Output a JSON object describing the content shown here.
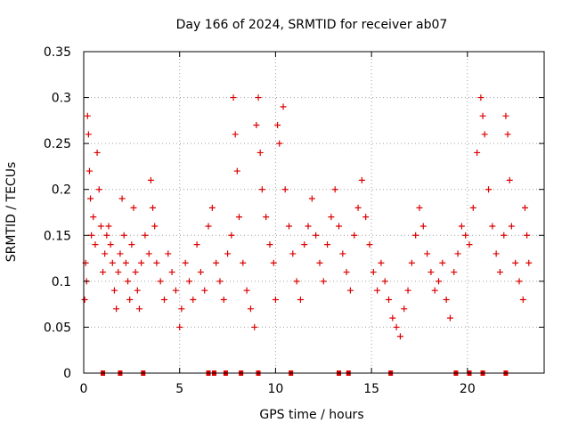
{
  "chart_data": {
    "type": "scatter",
    "title": "Day 166 of 2024, SRMTID for receiver ab07",
    "xlabel": "GPS time / hours",
    "ylabel": "SRMTID / TECUs",
    "xlim": [
      0,
      24
    ],
    "ylim": [
      0,
      0.35
    ],
    "x_ticks": [
      0,
      5,
      10,
      15,
      20
    ],
    "x_tick_labels": [
      "0",
      "5",
      "10",
      "15",
      "20"
    ],
    "y_ticks": [
      0,
      0.05,
      0.1,
      0.15,
      0.2,
      0.25,
      0.3,
      0.35
    ],
    "y_tick_labels": [
      "0",
      "0.05",
      "0.1",
      "0.15",
      "0.2",
      "0.25",
      "0.3",
      "0.35"
    ],
    "grid": true,
    "marker": "plus",
    "series_color": "#dd0000",
    "grid_color": "#a0a0a0",
    "series": [
      {
        "name": "SRMTID",
        "points": [
          [
            0.05,
            0.08
          ],
          [
            0.1,
            0.12
          ],
          [
            0.15,
            0.1
          ],
          [
            0.2,
            0.28
          ],
          [
            0.25,
            0.26
          ],
          [
            0.3,
            0.22
          ],
          [
            0.35,
            0.19
          ],
          [
            0.4,
            0.15
          ],
          [
            0.5,
            0.17
          ],
          [
            0.6,
            0.14
          ],
          [
            0.7,
            0.24
          ],
          [
            0.8,
            0.2
          ],
          [
            0.9,
            0.16
          ],
          [
            1.0,
            0.11
          ],
          [
            1.1,
            0.13
          ],
          [
            1.2,
            0.15
          ],
          [
            1.3,
            0.16
          ],
          [
            1.4,
            0.14
          ],
          [
            1.5,
            0.12
          ],
          [
            1.6,
            0.09
          ],
          [
            1.7,
            0.07
          ],
          [
            1.8,
            0.11
          ],
          [
            1.9,
            0.13
          ],
          [
            2.0,
            0.19
          ],
          [
            2.1,
            0.15
          ],
          [
            2.2,
            0.12
          ],
          [
            2.3,
            0.1
          ],
          [
            2.4,
            0.08
          ],
          [
            2.5,
            0.14
          ],
          [
            2.6,
            0.18
          ],
          [
            2.7,
            0.11
          ],
          [
            2.8,
            0.09
          ],
          [
            2.9,
            0.07
          ],
          [
            3.0,
            0.12
          ],
          [
            3.2,
            0.15
          ],
          [
            3.4,
            0.13
          ],
          [
            3.5,
            0.21
          ],
          [
            3.6,
            0.18
          ],
          [
            3.7,
            0.16
          ],
          [
            3.8,
            0.12
          ],
          [
            4.0,
            0.1
          ],
          [
            4.2,
            0.08
          ],
          [
            4.4,
            0.13
          ],
          [
            4.6,
            0.11
          ],
          [
            4.8,
            0.09
          ],
          [
            5.0,
            0.05
          ],
          [
            5.1,
            0.07
          ],
          [
            5.3,
            0.12
          ],
          [
            5.5,
            0.1
          ],
          [
            5.7,
            0.08
          ],
          [
            5.9,
            0.14
          ],
          [
            6.1,
            0.11
          ],
          [
            6.3,
            0.09
          ],
          [
            6.5,
            0.16
          ],
          [
            6.7,
            0.18
          ],
          [
            6.9,
            0.12
          ],
          [
            7.1,
            0.1
          ],
          [
            7.3,
            0.08
          ],
          [
            7.5,
            0.13
          ],
          [
            7.7,
            0.15
          ],
          [
            7.8,
            0.3
          ],
          [
            7.9,
            0.26
          ],
          [
            8.0,
            0.22
          ],
          [
            8.1,
            0.17
          ],
          [
            8.3,
            0.12
          ],
          [
            8.5,
            0.09
          ],
          [
            8.7,
            0.07
          ],
          [
            8.9,
            0.05
          ],
          [
            9.0,
            0.27
          ],
          [
            9.1,
            0.3
          ],
          [
            9.2,
            0.24
          ],
          [
            9.3,
            0.2
          ],
          [
            9.5,
            0.17
          ],
          [
            9.7,
            0.14
          ],
          [
            9.9,
            0.12
          ],
          [
            10.0,
            0.08
          ],
          [
            10.1,
            0.27
          ],
          [
            10.2,
            0.25
          ],
          [
            10.4,
            0.29
          ],
          [
            10.5,
            0.2
          ],
          [
            10.7,
            0.16
          ],
          [
            10.9,
            0.13
          ],
          [
            11.1,
            0.1
          ],
          [
            11.3,
            0.08
          ],
          [
            11.5,
            0.14
          ],
          [
            11.7,
            0.16
          ],
          [
            11.9,
            0.19
          ],
          [
            12.1,
            0.15
          ],
          [
            12.3,
            0.12
          ],
          [
            12.5,
            0.1
          ],
          [
            12.7,
            0.14
          ],
          [
            12.9,
            0.17
          ],
          [
            13.1,
            0.2
          ],
          [
            13.3,
            0.16
          ],
          [
            13.5,
            0.13
          ],
          [
            13.7,
            0.11
          ],
          [
            13.9,
            0.09
          ],
          [
            14.1,
            0.15
          ],
          [
            14.3,
            0.18
          ],
          [
            14.5,
            0.21
          ],
          [
            14.7,
            0.17
          ],
          [
            14.9,
            0.14
          ],
          [
            15.1,
            0.11
          ],
          [
            15.3,
            0.09
          ],
          [
            15.5,
            0.12
          ],
          [
            15.7,
            0.1
          ],
          [
            15.9,
            0.08
          ],
          [
            16.1,
            0.06
          ],
          [
            16.3,
            0.05
          ],
          [
            16.5,
            0.04
          ],
          [
            16.7,
            0.07
          ],
          [
            16.9,
            0.09
          ],
          [
            17.1,
            0.12
          ],
          [
            17.3,
            0.15
          ],
          [
            17.5,
            0.18
          ],
          [
            17.7,
            0.16
          ],
          [
            17.9,
            0.13
          ],
          [
            18.1,
            0.11
          ],
          [
            18.3,
            0.09
          ],
          [
            18.5,
            0.1
          ],
          [
            18.7,
            0.12
          ],
          [
            18.9,
            0.08
          ],
          [
            19.1,
            0.06
          ],
          [
            19.3,
            0.11
          ],
          [
            19.5,
            0.13
          ],
          [
            19.7,
            0.16
          ],
          [
            19.9,
            0.15
          ],
          [
            20.1,
            0.14
          ],
          [
            20.3,
            0.18
          ],
          [
            20.5,
            0.24
          ],
          [
            20.7,
            0.3
          ],
          [
            20.8,
            0.28
          ],
          [
            20.9,
            0.26
          ],
          [
            21.1,
            0.2
          ],
          [
            21.3,
            0.16
          ],
          [
            21.5,
            0.13
          ],
          [
            21.7,
            0.11
          ],
          [
            21.9,
            0.15
          ],
          [
            22.0,
            0.28
          ],
          [
            22.1,
            0.26
          ],
          [
            22.2,
            0.21
          ],
          [
            22.3,
            0.16
          ],
          [
            22.5,
            0.12
          ],
          [
            22.7,
            0.1
          ],
          [
            22.9,
            0.08
          ],
          [
            23.0,
            0.18
          ],
          [
            23.1,
            0.15
          ],
          [
            23.2,
            0.12
          ]
        ]
      }
    ],
    "baseline_markers": [
      1.0,
      1.9,
      3.1,
      6.5,
      6.8,
      7.4,
      8.2,
      9.1,
      10.8,
      13.3,
      13.8,
      16.0,
      19.4,
      20.1,
      20.8,
      22.0
    ]
  }
}
